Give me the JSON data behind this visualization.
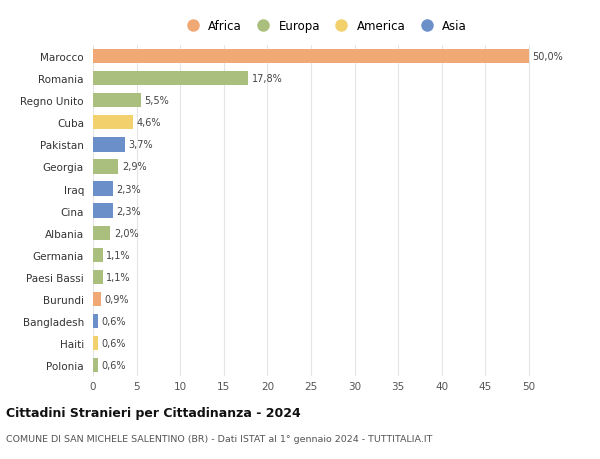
{
  "countries": [
    "Marocco",
    "Romania",
    "Regno Unito",
    "Cuba",
    "Pakistan",
    "Georgia",
    "Iraq",
    "Cina",
    "Albania",
    "Germania",
    "Paesi Bassi",
    "Burundi",
    "Bangladesh",
    "Haiti",
    "Polonia"
  ],
  "values": [
    50.0,
    17.8,
    5.5,
    4.6,
    3.7,
    2.9,
    2.3,
    2.3,
    2.0,
    1.1,
    1.1,
    0.9,
    0.6,
    0.6,
    0.6
  ],
  "labels": [
    "50,0%",
    "17,8%",
    "5,5%",
    "4,6%",
    "3,7%",
    "2,9%",
    "2,3%",
    "2,3%",
    "2,0%",
    "1,1%",
    "1,1%",
    "0,9%",
    "0,6%",
    "0,6%",
    "0,6%"
  ],
  "continents": [
    "Africa",
    "Europa",
    "Europa",
    "America",
    "Asia",
    "Europa",
    "Asia",
    "Asia",
    "Europa",
    "Europa",
    "Europa",
    "Africa",
    "Asia",
    "America",
    "Europa"
  ],
  "continent_colors": {
    "Africa": "#F0A875",
    "Europa": "#AABF7E",
    "America": "#F2D06B",
    "Asia": "#6B8FC9"
  },
  "legend_order": [
    "Africa",
    "Europa",
    "America",
    "Asia"
  ],
  "title": "Cittadini Stranieri per Cittadinanza - 2024",
  "subtitle": "COMUNE DI SAN MICHELE SALENTINO (BR) - Dati ISTAT al 1° gennaio 2024 - TUTTITALIA.IT",
  "xlim": [
    0,
    53
  ],
  "xticks": [
    0,
    5,
    10,
    15,
    20,
    25,
    30,
    35,
    40,
    45,
    50
  ],
  "background_color": "#FFFFFF",
  "grid_color": "#E5E5E5"
}
